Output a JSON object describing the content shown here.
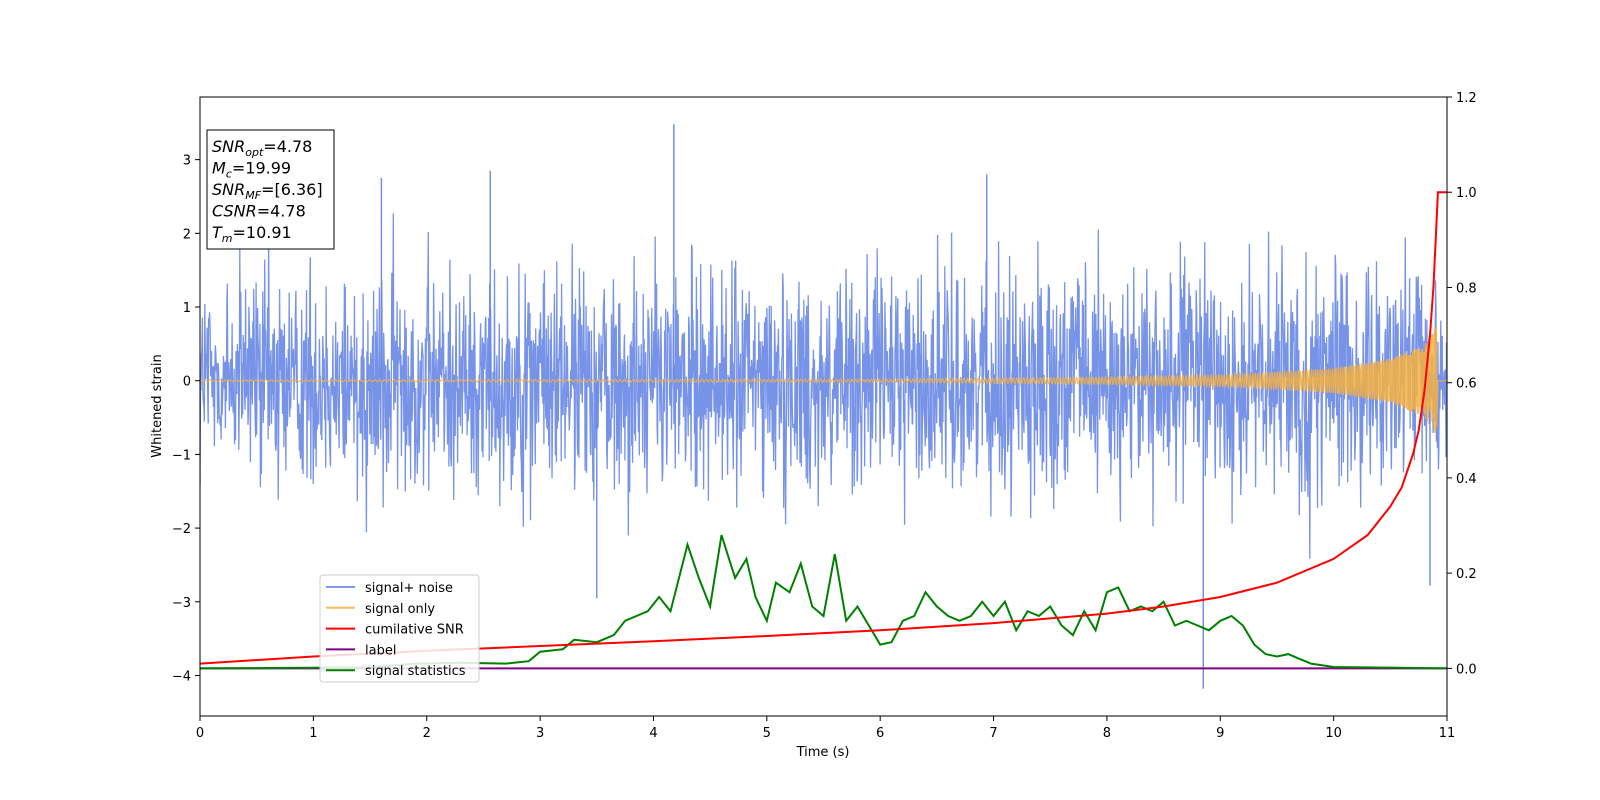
{
  "chart_data": {
    "type": "line",
    "xlabel": "Time (s)",
    "ylabel": "Whitened strain",
    "xlim": [
      0,
      11
    ],
    "ylim": [
      -4.55,
      3.85
    ],
    "y2lim": [
      -0.1,
      1.2
    ],
    "x_ticks": [
      0,
      1,
      2,
      3,
      4,
      5,
      6,
      7,
      8,
      9,
      10,
      11
    ],
    "y_ticks": [
      3,
      2,
      1,
      0,
      -1,
      -2,
      -3,
      -4
    ],
    "y_tick_labels": [
      "3",
      "2",
      "1",
      "0",
      "−1",
      "−2",
      "−3",
      "−4"
    ],
    "y2_ticks": [
      1.2,
      1.0,
      0.8,
      0.6,
      0.4,
      0.2,
      0.0
    ],
    "y2_tick_labels": [
      "1.2",
      "1.0",
      "0.8",
      "0.6",
      "0.4",
      "0.2",
      "0.0"
    ],
    "grid": false,
    "legend_position": "lower-left",
    "annotation": {
      "lines": [
        {
          "sym": "SNR",
          "sub": "opt",
          "value": "=4.78"
        },
        {
          "sym": "M",
          "sub": "c",
          "value": "=19.99"
        },
        {
          "sym": "SNR",
          "sub": "MF",
          "value": "=[6.36]"
        },
        {
          "sym": "CSNR",
          "sub": "",
          "value": "=4.78"
        },
        {
          "sym": "T",
          "sub": "m",
          "value": "=10.91"
        }
      ]
    },
    "series": [
      {
        "name": "signal+ noise",
        "axis": "left",
        "color": "#6b8ae6",
        "kind": "noise",
        "amplitude_envelope": [
          [
            0,
            2.6
          ],
          [
            11,
            2.6
          ]
        ],
        "notable_peaks": [
          [
            4.18,
            3.48
          ],
          [
            1.6,
            2.75
          ],
          [
            2.56,
            2.85
          ],
          [
            6.94,
            2.8
          ],
          [
            8.85,
            -4.18
          ],
          [
            3.5,
            -2.95
          ],
          [
            10.85,
            -2.78
          ]
        ]
      },
      {
        "name": "signal only",
        "axis": "left",
        "color": "#f5b042",
        "kind": "chirp",
        "amplitude_envelope": [
          [
            0,
            0.01
          ],
          [
            6,
            0.02
          ],
          [
            8,
            0.05
          ],
          [
            9,
            0.08
          ],
          [
            9.5,
            0.12
          ],
          [
            10,
            0.17
          ],
          [
            10.5,
            0.3
          ],
          [
            10.8,
            0.5
          ],
          [
            10.91,
            0.75
          ],
          [
            10.92,
            0
          ]
        ]
      },
      {
        "name": "cumilative SNR",
        "axis": "right",
        "color": "#ff0000",
        "points": [
          [
            0,
            0.01
          ],
          [
            1,
            0.025
          ],
          [
            2,
            0.037
          ],
          [
            3,
            0.047
          ],
          [
            4,
            0.057
          ],
          [
            5,
            0.068
          ],
          [
            6,
            0.08
          ],
          [
            7,
            0.095
          ],
          [
            8,
            0.115
          ],
          [
            8.5,
            0.13
          ],
          [
            9,
            0.15
          ],
          [
            9.5,
            0.18
          ],
          [
            10,
            0.23
          ],
          [
            10.3,
            0.28
          ],
          [
            10.5,
            0.34
          ],
          [
            10.6,
            0.38
          ],
          [
            10.7,
            0.45
          ],
          [
            10.75,
            0.5
          ],
          [
            10.8,
            0.58
          ],
          [
            10.85,
            0.7
          ],
          [
            10.88,
            0.8
          ],
          [
            10.9,
            0.9
          ],
          [
            10.92,
            1.0
          ],
          [
            11,
            1.0
          ]
        ]
      },
      {
        "name": "label",
        "axis": "right",
        "color": "#800080",
        "points": [
          [
            0,
            0.0
          ],
          [
            11,
            0.0
          ]
        ]
      },
      {
        "name": "signal statistics",
        "axis": "right",
        "color": "#008000",
        "points": [
          [
            0,
            0.0
          ],
          [
            1.5,
            0.002
          ],
          [
            1.9,
            0.01
          ],
          [
            2.3,
            0.012
          ],
          [
            2.7,
            0.01
          ],
          [
            2.9,
            0.015
          ],
          [
            3.0,
            0.035
          ],
          [
            3.2,
            0.04
          ],
          [
            3.3,
            0.06
          ],
          [
            3.5,
            0.055
          ],
          [
            3.65,
            0.07
          ],
          [
            3.75,
            0.1
          ],
          [
            3.85,
            0.11
          ],
          [
            3.95,
            0.12
          ],
          [
            4.05,
            0.15
          ],
          [
            4.15,
            0.12
          ],
          [
            4.3,
            0.26
          ],
          [
            4.4,
            0.19
          ],
          [
            4.5,
            0.13
          ],
          [
            4.6,
            0.28
          ],
          [
            4.72,
            0.19
          ],
          [
            4.82,
            0.23
          ],
          [
            4.9,
            0.15
          ],
          [
            5.0,
            0.1
          ],
          [
            5.08,
            0.18
          ],
          [
            5.2,
            0.16
          ],
          [
            5.3,
            0.22
          ],
          [
            5.4,
            0.13
          ],
          [
            5.5,
            0.11
          ],
          [
            5.6,
            0.24
          ],
          [
            5.7,
            0.1
          ],
          [
            5.8,
            0.13
          ],
          [
            5.9,
            0.09
          ],
          [
            6.0,
            0.05
          ],
          [
            6.1,
            0.055
          ],
          [
            6.2,
            0.1
          ],
          [
            6.3,
            0.11
          ],
          [
            6.4,
            0.16
          ],
          [
            6.5,
            0.13
          ],
          [
            6.6,
            0.11
          ],
          [
            6.7,
            0.1
          ],
          [
            6.8,
            0.11
          ],
          [
            6.9,
            0.14
          ],
          [
            7.0,
            0.11
          ],
          [
            7.1,
            0.14
          ],
          [
            7.2,
            0.08
          ],
          [
            7.3,
            0.12
          ],
          [
            7.4,
            0.11
          ],
          [
            7.5,
            0.13
          ],
          [
            7.6,
            0.09
          ],
          [
            7.7,
            0.07
          ],
          [
            7.8,
            0.12
          ],
          [
            7.9,
            0.08
          ],
          [
            8.0,
            0.16
          ],
          [
            8.1,
            0.17
          ],
          [
            8.2,
            0.12
          ],
          [
            8.3,
            0.13
          ],
          [
            8.4,
            0.12
          ],
          [
            8.5,
            0.14
          ],
          [
            8.6,
            0.09
          ],
          [
            8.7,
            0.1
          ],
          [
            8.8,
            0.09
          ],
          [
            8.9,
            0.08
          ],
          [
            9.0,
            0.1
          ],
          [
            9.1,
            0.11
          ],
          [
            9.2,
            0.09
          ],
          [
            9.3,
            0.05
          ],
          [
            9.4,
            0.03
          ],
          [
            9.5,
            0.025
          ],
          [
            9.6,
            0.03
          ],
          [
            9.7,
            0.02
          ],
          [
            9.8,
            0.01
          ],
          [
            10.0,
            0.003
          ],
          [
            11,
            0.0
          ]
        ]
      }
    ]
  }
}
